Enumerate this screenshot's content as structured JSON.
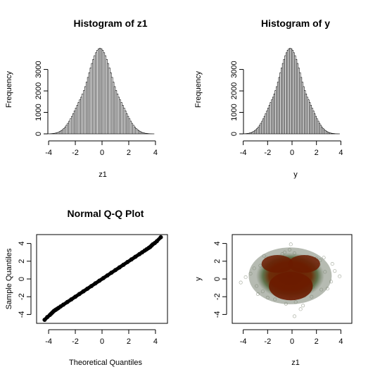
{
  "chart_data": [
    {
      "type": "bar",
      "title": "Histogram of z1",
      "xlabel": "z1",
      "ylabel": "Frequency",
      "xlim": [
        -4.9,
        4.9
      ],
      "ylim": [
        0,
        4200
      ],
      "x_ticks": [
        "-4",
        "-2",
        "0",
        "2",
        "4"
      ],
      "y_ticks": [
        "0",
        "1000",
        "2000",
        "3000"
      ],
      "bin_start": -4.2,
      "bin_width": 0.1,
      "values": [
        1,
        2,
        4,
        7,
        12,
        18,
        27,
        40,
        57,
        80,
        110,
        148,
        195,
        252,
        321,
        400,
        491,
        591,
        700,
        817,
        940,
        1068,
        1199,
        1330,
        1460,
        1585,
        1710,
        1860,
        2020,
        2200,
        2410,
        2630,
        2850,
        3070,
        3280,
        3470,
        3640,
        3780,
        3890,
        3960,
        3990,
        3960,
        3890,
        3780,
        3640,
        3470,
        3280,
        3070,
        2850,
        2630,
        2410,
        2200,
        2020,
        1860,
        1710,
        1585,
        1460,
        1330,
        1199,
        1068,
        940,
        817,
        700,
        591,
        491,
        400,
        321,
        252,
        195,
        148,
        110,
        80,
        57,
        40,
        27,
        18,
        12,
        7,
        4,
        2,
        1,
        0,
        0,
        0,
        0
      ]
    },
    {
      "type": "bar",
      "title": "Histogram of y",
      "xlabel": "y",
      "ylabel": "Frequency",
      "xlim": [
        -4.9,
        4.9
      ],
      "ylim": [
        0,
        4200
      ],
      "x_ticks": [
        "-4",
        "-2",
        "0",
        "2",
        "4"
      ],
      "y_ticks": [
        "0",
        "1000",
        "2000",
        "3000"
      ],
      "bin_start": -4.2,
      "bin_width": 0.1,
      "values": [
        1,
        2,
        4,
        7,
        12,
        18,
        27,
        40,
        57,
        80,
        110,
        148,
        195,
        252,
        321,
        400,
        491,
        591,
        700,
        817,
        940,
        1068,
        1199,
        1330,
        1460,
        1585,
        1710,
        1860,
        2020,
        2200,
        2410,
        2630,
        2850,
        3070,
        3280,
        3470,
        3640,
        3780,
        3890,
        3960,
        3990,
        3960,
        3890,
        3780,
        3640,
        3470,
        3280,
        3070,
        2850,
        2630,
        2410,
        2200,
        2020,
        1860,
        1710,
        1585,
        1460,
        1330,
        1199,
        1068,
        940,
        817,
        700,
        591,
        491,
        400,
        321,
        252,
        195,
        148,
        110,
        80,
        57,
        40,
        27,
        18,
        12,
        7,
        4,
        2,
        1,
        0,
        0,
        0,
        0
      ]
    },
    {
      "type": "scatter",
      "title": "Normal Q-Q Plot",
      "xlabel": "Theoretical Quantiles",
      "ylabel": "Sample Quantiles",
      "xlim": [
        -4.9,
        4.9
      ],
      "ylim": [
        -5.0,
        5.0
      ],
      "x_ticks": [
        "-4",
        "-2",
        "0",
        "2",
        "4"
      ],
      "y_ticks": [
        "-4",
        "-2",
        "0",
        "2",
        "4"
      ],
      "x": [
        -4.3,
        -4.1,
        -3.9,
        -3.8,
        -3.7,
        -3.6,
        -3.5,
        -3.45,
        -3.35,
        -3.25,
        -3.1,
        -2.9,
        -2.6,
        -2.3,
        -2.0,
        -1.7,
        -1.4,
        -1.1,
        -0.8,
        -0.5,
        -0.2,
        0.1,
        0.4,
        0.7,
        1.0,
        1.3,
        1.6,
        1.9,
        2.2,
        2.5,
        2.8,
        3.0,
        3.2,
        3.35,
        3.5,
        3.6,
        3.7,
        3.8,
        3.95,
        4.1,
        4.4
      ],
      "y": [
        -4.6,
        -4.3,
        -4.05,
        -3.9,
        -3.75,
        -3.6,
        -3.5,
        -3.45,
        -3.35,
        -3.25,
        -3.1,
        -2.9,
        -2.6,
        -2.3,
        -2.0,
        -1.7,
        -1.4,
        -1.1,
        -0.8,
        -0.5,
        -0.2,
        0.1,
        0.4,
        0.7,
        1.0,
        1.3,
        1.6,
        1.9,
        2.2,
        2.5,
        2.8,
        3.0,
        3.2,
        3.35,
        3.5,
        3.6,
        3.75,
        3.9,
        4.05,
        4.25,
        4.7
      ]
    },
    {
      "type": "scatter",
      "xlabel": "z1",
      "ylabel": "y",
      "xlim": [
        -4.9,
        4.9
      ],
      "ylim": [
        -5.0,
        5.0
      ],
      "x_ticks": [
        "-4",
        "-2",
        "0",
        "2",
        "4"
      ],
      "y_ticks": [
        "-4",
        "-2",
        "0",
        "2",
        "4"
      ],
      "point_color": "#556b40",
      "dense_color": "#6b1b00",
      "x": [
        -0.3,
        0.4,
        -0.9,
        1.1,
        -1.6,
        1.7,
        -2.1,
        2.2,
        -0.1,
        0.8,
        -1.2,
        1.5,
        -2.6,
        2.7,
        -3.1,
        3.2,
        -0.5,
        0.2,
        -1.8,
        1.9,
        -2.4,
        2.4,
        0.0,
        -0.7,
        0.6,
        -1.4,
        1.3,
        -3.4,
        3.5,
        -0.2,
        0.9,
        -1.0,
        1.0,
        -2.0,
        2.0,
        -2.9,
        2.9,
        -0.4,
        0.5,
        -1.7,
        1.6,
        -3.8,
        3.3,
        0.1,
        -0.8,
        0.7,
        -1.3,
        1.2,
        -2.3,
        2.3,
        -0.6,
        0.3,
        -1.5,
        1.4,
        -2.8,
        2.6,
        -4.2,
        3.9,
        0.2,
        -0.1
      ],
      "y": [
        1.2,
        -0.4,
        2.1,
        -1.3,
        1.8,
        -0.9,
        2.4,
        1.6,
        -2.2,
        2.0,
        -1.6,
        -0.6,
        1.5,
        0.8,
        1.2,
        -0.3,
        -2.8,
        2.9,
        0.4,
        1.1,
        -1.4,
        -1.2,
        0.0,
        -0.9,
        1.0,
        -2.3,
        2.5,
        0.6,
        0.9,
        3.3,
        -3.0,
        0.3,
        -1.9,
        -2.1,
        2.3,
        -0.8,
        -1.1,
        -0.2,
        0.7,
        1.7,
        -2.0,
        0.2,
        1.7,
        -1.0,
        2.8,
        -3.4,
        0.5,
        -1.5,
        2.6,
        2.1,
        3.0,
        -2.6,
        -0.5,
        1.4,
        -1.7,
        2.4,
        -0.4,
        0.3,
        -4.2,
        3.9
      ]
    }
  ]
}
